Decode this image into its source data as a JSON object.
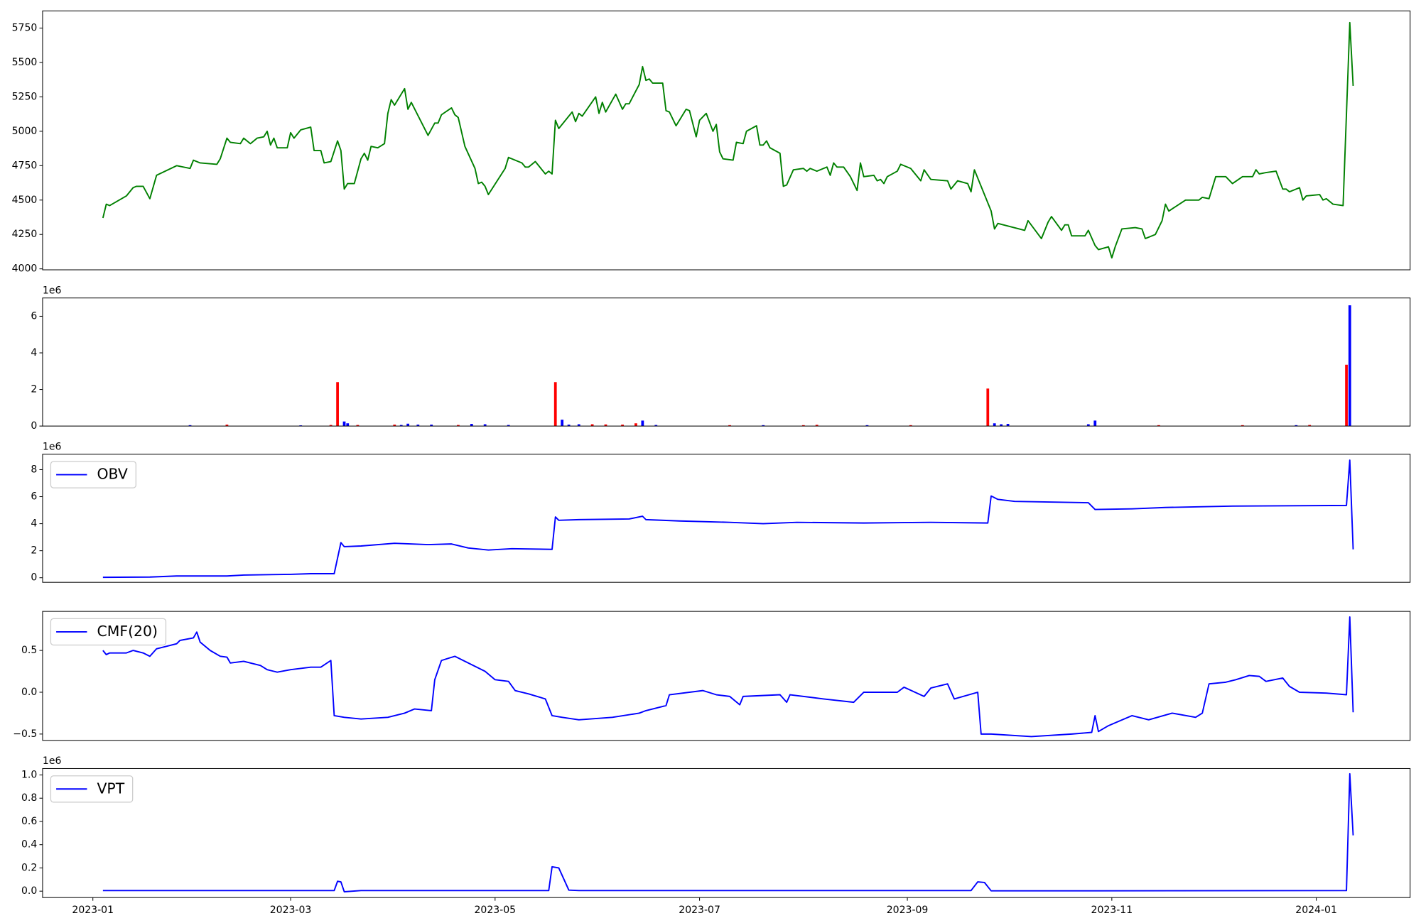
{
  "chart_data": [
    {
      "type": "line",
      "color": "#008000",
      "xlim": [
        "2022-12-17",
        "2024-01-29"
      ],
      "ylim": [
        3993,
        5875
      ],
      "yticks": [
        4000,
        4250,
        4500,
        4750,
        5000,
        5250,
        5500,
        5750
      ],
      "x": [
        "2023-01-04",
        "2023-01-05",
        "2023-01-06",
        "2023-01-11",
        "2023-01-13",
        "2023-01-14",
        "2023-01-16",
        "2023-01-18",
        "2023-01-20",
        "2023-01-26",
        "2023-01-30",
        "2023-01-31",
        "2023-02-02",
        "2023-02-07",
        "2023-02-08",
        "2023-02-10",
        "2023-02-11",
        "2023-02-14",
        "2023-02-15",
        "2023-02-17",
        "2023-02-19",
        "2023-02-21",
        "2023-02-22",
        "2023-02-23",
        "2023-02-24",
        "2023-02-25",
        "2023-02-28",
        "2023-03-01",
        "2023-03-02",
        "2023-03-04",
        "2023-03-07",
        "2023-03-08",
        "2023-03-10",
        "2023-03-11",
        "2023-03-13",
        "2023-03-15",
        "2023-03-16",
        "2023-03-17",
        "2023-03-18",
        "2023-03-20",
        "2023-03-22",
        "2023-03-23",
        "2023-03-24",
        "2023-03-25",
        "2023-03-27",
        "2023-03-29",
        "2023-03-30",
        "2023-03-31",
        "2023-04-01",
        "2023-04-04",
        "2023-04-05",
        "2023-04-06",
        "2023-04-11",
        "2023-04-13",
        "2023-04-14",
        "2023-04-15",
        "2023-04-18",
        "2023-04-19",
        "2023-04-20",
        "2023-04-22",
        "2023-04-25",
        "2023-04-26",
        "2023-04-27",
        "2023-04-28",
        "2023-04-29",
        "2023-05-04",
        "2023-05-05",
        "2023-05-09",
        "2023-05-10",
        "2023-05-11",
        "2023-05-13",
        "2023-05-16",
        "2023-05-17",
        "2023-05-18",
        "2023-05-19",
        "2023-05-20",
        "2023-05-24",
        "2023-05-25",
        "2023-05-26",
        "2023-05-27",
        "2023-05-31",
        "2023-06-01",
        "2023-06-02",
        "2023-06-03",
        "2023-06-06",
        "2023-06-08",
        "2023-06-09",
        "2023-06-10",
        "2023-06-13",
        "2023-06-14",
        "2023-06-15",
        "2023-06-16",
        "2023-06-17",
        "2023-06-20",
        "2023-06-21",
        "2023-06-22",
        "2023-06-24",
        "2023-06-27",
        "2023-06-28",
        "2023-06-30",
        "2023-07-01",
        "2023-07-03",
        "2023-07-05",
        "2023-07-06",
        "2023-07-07",
        "2023-07-08",
        "2023-07-11",
        "2023-07-12",
        "2023-07-14",
        "2023-07-15",
        "2023-07-18",
        "2023-07-19",
        "2023-07-20",
        "2023-07-21",
        "2023-07-22",
        "2023-07-25",
        "2023-07-26",
        "2023-07-27",
        "2023-07-29",
        "2023-08-01",
        "2023-08-02",
        "2023-08-03",
        "2023-08-05",
        "2023-08-08",
        "2023-08-09",
        "2023-08-10",
        "2023-08-11",
        "2023-08-13",
        "2023-08-15",
        "2023-08-17",
        "2023-08-18",
        "2023-08-19",
        "2023-08-22",
        "2023-08-23",
        "2023-08-24",
        "2023-08-25",
        "2023-08-26",
        "2023-08-29",
        "2023-08-30",
        "2023-09-02",
        "2023-09-05",
        "2023-09-06",
        "2023-09-08",
        "2023-09-13",
        "2023-09-14",
        "2023-09-16",
        "2023-09-19",
        "2023-09-20",
        "2023-09-21",
        "2023-09-26",
        "2023-09-27",
        "2023-09-28",
        "2023-10-06",
        "2023-10-07",
        "2023-10-11",
        "2023-10-13",
        "2023-10-14",
        "2023-10-17",
        "2023-10-18",
        "2023-10-19",
        "2023-10-20",
        "2023-10-24",
        "2023-10-25",
        "2023-10-27",
        "2023-10-28",
        "2023-10-31",
        "2023-11-01",
        "2023-11-02",
        "2023-11-04",
        "2023-11-08",
        "2023-11-10",
        "2023-11-11",
        "2023-11-14",
        "2023-11-16",
        "2023-11-17",
        "2023-11-18",
        "2023-11-23",
        "2023-11-27",
        "2023-11-28",
        "2023-11-30",
        "2023-12-02",
        "2023-12-05",
        "2023-12-07",
        "2023-12-10",
        "2023-12-13",
        "2023-12-14",
        "2023-12-15",
        "2023-12-17",
        "2023-12-20",
        "2023-12-22",
        "2023-12-23",
        "2023-12-24",
        "2023-12-27",
        "2023-12-28",
        "2023-12-29",
        "2024-01-02",
        "2024-01-03",
        "2024-01-04",
        "2024-01-06",
        "2024-01-09",
        "2024-01-11",
        "2024-01-12"
      ],
      "values": [
        4370,
        4470,
        4460,
        4530,
        4590,
        4600,
        4600,
        4510,
        4680,
        4750,
        4730,
        4790,
        4770,
        4760,
        4800,
        4950,
        4920,
        4910,
        4950,
        4910,
        4950,
        4960,
        5000,
        4900,
        4950,
        4880,
        4880,
        4990,
        4950,
        5010,
        5030,
        4860,
        4860,
        4770,
        4780,
        4930,
        4860,
        4580,
        4620,
        4620,
        4800,
        4840,
        4790,
        4890,
        4880,
        4910,
        5130,
        5230,
        5190,
        5310,
        5160,
        5210,
        4970,
        5060,
        5060,
        5120,
        5170,
        5120,
        5100,
        4890,
        4730,
        4620,
        4630,
        4600,
        4540,
        4730,
        4810,
        4770,
        4740,
        4740,
        4780,
        4690,
        4710,
        4690,
        5080,
        5020,
        5140,
        5070,
        5130,
        5110,
        5250,
        5130,
        5210,
        5140,
        5270,
        5160,
        5200,
        5200,
        5340,
        5470,
        5370,
        5380,
        5350,
        5350,
        5150,
        5140,
        5040,
        5160,
        5150,
        4960,
        5080,
        5130,
        5000,
        5050,
        4850,
        4800,
        4790,
        4920,
        4910,
        5000,
        5040,
        4900,
        4900,
        4930,
        4880,
        4840,
        4600,
        4610,
        4720,
        4730,
        4710,
        4730,
        4710,
        4740,
        4680,
        4770,
        4740,
        4740,
        4670,
        4570,
        4770,
        4670,
        4680,
        4640,
        4650,
        4620,
        4670,
        4710,
        4760,
        4730,
        4640,
        4720,
        4650,
        4640,
        4580,
        4640,
        4620,
        4560,
        4720,
        4420,
        4290,
        4330,
        4280,
        4350,
        4220,
        4340,
        4380,
        4280,
        4320,
        4320,
        4240,
        4240,
        4280,
        4170,
        4140,
        4160,
        4080,
        4160,
        4290,
        4300,
        4290,
        4220,
        4250,
        4350,
        4470,
        4420,
        4500,
        4500,
        4520,
        4510,
        4670,
        4670,
        4620,
        4670,
        4670,
        4720,
        4690,
        4700,
        4710,
        4580,
        4580,
        4560,
        4590,
        4500,
        4530,
        4540,
        4500,
        4510,
        4470,
        4460,
        5790,
        5330
      ]
    },
    {
      "type": "bar",
      "offset_label": "1e6",
      "xlim": [
        "2022-12-17",
        "2024-01-29"
      ],
      "ylim": [
        0,
        7000000
      ],
      "yticks": [
        0,
        {
          "value": 2000000,
          "label": "2"
        },
        {
          "value": 4000000,
          "label": "4"
        },
        {
          "value": 6000000,
          "label": "6"
        }
      ],
      "x": [
        "2023-01-30",
        "2023-02-10",
        "2023-03-04",
        "2023-03-13",
        "2023-03-15",
        "2023-03-17",
        "2023-03-18",
        "2023-03-21",
        "2023-04-01",
        "2023-04-03",
        "2023-04-05",
        "2023-04-08",
        "2023-04-12",
        "2023-04-20",
        "2023-04-24",
        "2023-04-28",
        "2023-05-05",
        "2023-05-19",
        "2023-05-21",
        "2023-05-23",
        "2023-05-26",
        "2023-05-30",
        "2023-06-03",
        "2023-06-08",
        "2023-06-12",
        "2023-06-14",
        "2023-06-18",
        "2023-07-10",
        "2023-07-20",
        "2023-08-01",
        "2023-08-05",
        "2023-08-20",
        "2023-09-02",
        "2023-09-25",
        "2023-09-27",
        "2023-09-29",
        "2023-10-01",
        "2023-10-25",
        "2023-10-27",
        "2023-11-15",
        "2023-12-10",
        "2023-12-26",
        "2023-12-30",
        "2024-01-10",
        "2024-01-11"
      ],
      "values": [
        50000,
        80000,
        40000,
        60000,
        2400000,
        250000,
        150000,
        60000,
        80000,
        60000,
        130000,
        80000,
        80000,
        60000,
        120000,
        100000,
        60000,
        2400000,
        350000,
        80000,
        100000,
        100000,
        90000,
        80000,
        150000,
        300000,
        60000,
        50000,
        50000,
        50000,
        70000,
        50000,
        50000,
        2050000,
        150000,
        100000,
        120000,
        100000,
        300000,
        50000,
        50000,
        50000,
        60000,
        3350000,
        6600000
      ],
      "colors": [
        "#0000ff",
        "#ff0000",
        "#0000ff",
        "#ff0000",
        "#ff0000",
        "#0000ff",
        "#0000ff",
        "#ff0000",
        "#ff0000",
        "#0000ff",
        "#0000ff",
        "#0000ff",
        "#0000ff",
        "#ff0000",
        "#0000ff",
        "#0000ff",
        "#0000ff",
        "#ff0000",
        "#0000ff",
        "#0000ff",
        "#0000ff",
        "#ff0000",
        "#ff0000",
        "#ff0000",
        "#ff0000",
        "#0000ff",
        "#0000ff",
        "#ff0000",
        "#0000ff",
        "#ff0000",
        "#ff0000",
        "#0000ff",
        "#ff0000",
        "#ff0000",
        "#0000ff",
        "#0000ff",
        "#0000ff",
        "#0000ff",
        "#0000ff",
        "#ff0000",
        "#ff0000",
        "#0000ff",
        "#ff0000",
        "#ff0000",
        "#0000ff"
      ]
    },
    {
      "type": "line",
      "offset_label": "1e6",
      "legend": "upper left",
      "xlim": [
        "2022-12-17",
        "2024-01-29"
      ],
      "ylim": [
        -340000,
        9140000
      ],
      "yticks": [
        0,
        {
          "value": 2000000,
          "label": "2"
        },
        {
          "value": 4000000,
          "label": "4"
        },
        {
          "value": 6000000,
          "label": "6"
        },
        {
          "value": 8000000,
          "label": "8"
        }
      ],
      "x": [
        "2023-01-04",
        "2023-01-18",
        "2023-01-26",
        "2023-02-10",
        "2023-02-15",
        "2023-03-01",
        "2023-03-07",
        "2023-03-14",
        "2023-03-16",
        "2023-03-17",
        "2023-03-22",
        "2023-04-01",
        "2023-04-11",
        "2023-04-18",
        "2023-04-23",
        "2023-04-29",
        "2023-05-06",
        "2023-05-18",
        "2023-05-19",
        "2023-05-20",
        "2023-05-26",
        "2023-06-10",
        "2023-06-14",
        "2023-06-15",
        "2023-06-25",
        "2023-07-10",
        "2023-07-20",
        "2023-07-30",
        "2023-08-19",
        "2023-09-08",
        "2023-09-25",
        "2023-09-26",
        "2023-09-28",
        "2023-10-03",
        "2023-10-25",
        "2023-10-27",
        "2023-11-07",
        "2023-11-17",
        "2023-12-07",
        "2024-01-10",
        "2024-01-11",
        "2024-01-12"
      ],
      "series": [
        {
          "name": "OBV",
          "color": "#0000ff",
          "values": [
            30000,
            50000,
            130000,
            130000,
            200000,
            250000,
            300000,
            300000,
            2600000,
            2300000,
            2350000,
            2550000,
            2450000,
            2500000,
            2200000,
            2050000,
            2150000,
            2100000,
            4500000,
            4250000,
            4300000,
            4350000,
            4550000,
            4300000,
            4200000,
            4100000,
            4000000,
            4100000,
            4050000,
            4100000,
            4050000,
            6050000,
            5800000,
            5650000,
            5550000,
            5050000,
            5100000,
            5200000,
            5300000,
            5350000,
            8700000,
            2100000
          ]
        }
      ]
    },
    {
      "type": "line",
      "legend": "upper left",
      "xlim": [
        "2022-12-17",
        "2024-01-29"
      ],
      "ylim": [
        -0.576,
        0.967
      ],
      "yticks": [
        {
          "value": -0.5,
          "label": "−0.5"
        },
        {
          "value": 0,
          "label": "0.0"
        },
        0.5
      ],
      "x": [
        "2023-01-04",
        "2023-01-05",
        "2023-01-06",
        "2023-01-11",
        "2023-01-13",
        "2023-01-16",
        "2023-01-18",
        "2023-01-20",
        "2023-01-26",
        "2023-01-27",
        "2023-01-31",
        "2023-02-01",
        "2023-02-02",
        "2023-02-05",
        "2023-02-08",
        "2023-02-10",
        "2023-02-11",
        "2023-02-15",
        "2023-02-20",
        "2023-02-22",
        "2023-02-25",
        "2023-03-01",
        "2023-03-07",
        "2023-03-10",
        "2023-03-13",
        "2023-03-14",
        "2023-03-17",
        "2023-03-22",
        "2023-03-30",
        "2023-04-04",
        "2023-04-07",
        "2023-04-12",
        "2023-04-13",
        "2023-04-15",
        "2023-04-19",
        "2023-04-24",
        "2023-04-28",
        "2023-05-01",
        "2023-05-05",
        "2023-05-07",
        "2023-05-11",
        "2023-05-16",
        "2023-05-18",
        "2023-05-21",
        "2023-05-26",
        "2023-06-05",
        "2023-06-13",
        "2023-06-15",
        "2023-06-21",
        "2023-06-22",
        "2023-07-02",
        "2023-07-06",
        "2023-07-10",
        "2023-07-13",
        "2023-07-14",
        "2023-07-25",
        "2023-07-27",
        "2023-07-28",
        "2023-08-07",
        "2023-08-16",
        "2023-08-19",
        "2023-08-29",
        "2023-08-31",
        "2023-09-06",
        "2023-09-08",
        "2023-09-13",
        "2023-09-15",
        "2023-09-22",
        "2023-09-23",
        "2023-09-26",
        "2023-10-08",
        "2023-10-20",
        "2023-10-26",
        "2023-10-27",
        "2023-10-28",
        "2023-10-31",
        "2023-11-07",
        "2023-11-12",
        "2023-11-19",
        "2023-11-26",
        "2023-11-28",
        "2023-11-30",
        "2023-12-05",
        "2023-12-08",
        "2023-12-12",
        "2023-12-15",
        "2023-12-17",
        "2023-12-22",
        "2023-12-24",
        "2023-12-27",
        "2024-01-04",
        "2024-01-10",
        "2024-01-11",
        "2024-01-12"
      ],
      "series": [
        {
          "name": "CMF(20)",
          "color": "#0000ff",
          "values": [
            0.5,
            0.45,
            0.47,
            0.47,
            0.5,
            0.47,
            0.43,
            0.52,
            0.58,
            0.62,
            0.65,
            0.72,
            0.6,
            0.5,
            0.43,
            0.42,
            0.35,
            0.37,
            0.32,
            0.27,
            0.24,
            0.27,
            0.3,
            0.3,
            0.38,
            -0.28,
            -0.3,
            -0.32,
            -0.3,
            -0.25,
            -0.2,
            -0.22,
            0.15,
            0.38,
            0.43,
            0.33,
            0.25,
            0.15,
            0.13,
            0.02,
            -0.02,
            -0.08,
            -0.28,
            -0.3,
            -0.33,
            -0.3,
            -0.25,
            -0.22,
            -0.16,
            -0.03,
            0.02,
            -0.03,
            -0.05,
            -0.15,
            -0.05,
            -0.03,
            -0.12,
            -0.03,
            -0.08,
            -0.12,
            0,
            0,
            0.06,
            -0.05,
            0.05,
            0.1,
            -0.08,
            0,
            -0.5,
            -0.5,
            -0.53,
            -0.5,
            -0.48,
            -0.28,
            -0.47,
            -0.4,
            -0.28,
            -0.33,
            -0.25,
            -0.3,
            -0.25,
            0.1,
            0.12,
            0.15,
            0.2,
            0.19,
            0.13,
            0.17,
            0.07,
            0,
            -0.01,
            -0.03,
            0.9,
            -0.24
          ]
        }
      ]
    },
    {
      "type": "line",
      "offset_label": "1e6",
      "legend": "upper left",
      "xlim": [
        "2022-12-17",
        "2024-01-29"
      ],
      "ylim": [
        -55000,
        1055000
      ],
      "yticks": [
        {
          "value": 0,
          "label": "0.0"
        },
        {
          "value": 200000,
          "label": "0.2"
        },
        {
          "value": 400000,
          "label": "0.4"
        },
        {
          "value": 600000,
          "label": "0.6"
        },
        {
          "value": 800000,
          "label": "0.8"
        },
        {
          "value": 1000000,
          "label": "1.0"
        }
      ],
      "xticks": [
        {
          "value": "2023-01-01",
          "label": "2023-01"
        },
        {
          "value": "2023-03-01",
          "label": "2023-03"
        },
        {
          "value": "2023-05-01",
          "label": "2023-05"
        },
        {
          "value": "2023-07-01",
          "label": "2023-07"
        },
        {
          "value": "2023-09-01",
          "label": "2023-09"
        },
        {
          "value": "2023-11-01",
          "label": "2023-11"
        },
        {
          "value": "2024-01-01",
          "label": "2024-01"
        }
      ],
      "x": [
        "2023-01-04",
        "2023-03-14",
        "2023-03-15",
        "2023-03-16",
        "2023-03-17",
        "2023-03-22",
        "2023-04-11",
        "2023-05-17",
        "2023-05-18",
        "2023-05-20",
        "2023-05-23",
        "2023-05-26",
        "2023-09-20",
        "2023-09-22",
        "2023-09-24",
        "2023-09-26",
        "2023-10-28",
        "2024-01-10",
        "2024-01-11",
        "2024-01-12"
      ],
      "series": [
        {
          "name": "VPT",
          "color": "#0000ff",
          "values": [
            5000,
            5000,
            85000,
            80000,
            -5000,
            5000,
            5000,
            5000,
            210000,
            200000,
            9000,
            5000,
            5000,
            80000,
            75000,
            3000,
            3000,
            5000,
            1010000,
            480000
          ]
        }
      ]
    }
  ]
}
